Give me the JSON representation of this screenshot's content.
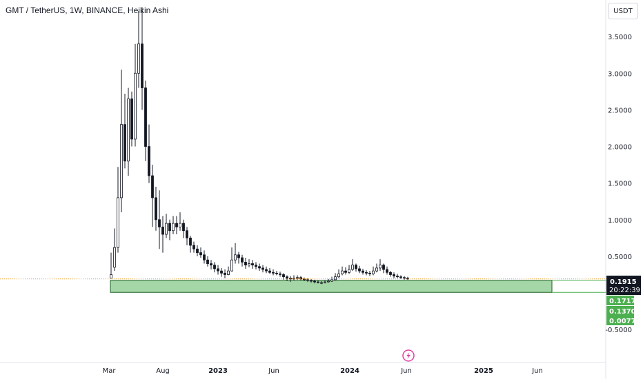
{
  "header": {
    "title": "GMT / TetherUS, 1W, BINANCE, Heikin Ashi",
    "currency_button": "USDT"
  },
  "colors": {
    "candle_body": "#131722",
    "zone_fill": "#a5d6a7",
    "zone_border": "#1b5e20",
    "price_label_bg": "#131722",
    "level_label_bg": "#4caf50",
    "price_line": "#f0a030"
  },
  "chart_data": {
    "type": "candlestick",
    "title": "GMT / TetherUS, 1W, BINANCE, Heikin Ashi",
    "x_ticks": [
      "Mar",
      "Aug",
      "2023",
      "Jun",
      "2024",
      "Jun",
      "2025",
      "Jun"
    ],
    "y_ticks": [
      "3.5000",
      "3.0000",
      "2.5000",
      "2.0000",
      "1.5000",
      "1.0000",
      "0.5000",
      "-0.5000"
    ],
    "y_tick_values": [
      3.5,
      3.0,
      2.5,
      2.0,
      1.5,
      1.0,
      0.5,
      -0.5
    ],
    "ylim": [
      -0.95,
      4.0
    ],
    "current_price": {
      "value": 0.1915,
      "label": "0.1915",
      "countdown": "20:22:39"
    },
    "level_labels": [
      {
        "value": 0.1717,
        "label": "0.1717"
      },
      {
        "value": 0.137,
        "label": "0.1370"
      },
      {
        "value": 0.0077,
        "label": "0.0077"
      }
    ],
    "zone": {
      "top": 0.1717,
      "bottom": 0.0077
    },
    "candles": [
      [
        0.2,
        0.25,
        0.2,
        0.55
      ],
      [
        0.35,
        0.62,
        0.3,
        0.88
      ],
      [
        0.62,
        1.3,
        0.55,
        1.72
      ],
      [
        1.3,
        2.3,
        1.1,
        3.05
      ],
      [
        2.3,
        1.8,
        1.7,
        2.72
      ],
      [
        1.8,
        2.65,
        1.6,
        2.8
      ],
      [
        2.65,
        2.1,
        2.0,
        2.75
      ],
      [
        2.1,
        3.0,
        2.0,
        3.4
      ],
      [
        3.0,
        3.4,
        2.8,
        3.85
      ],
      [
        3.4,
        2.8,
        2.5,
        3.9
      ],
      [
        2.8,
        2.0,
        1.8,
        2.9
      ],
      [
        2.0,
        1.6,
        1.5,
        2.3
      ],
      [
        1.6,
        1.3,
        0.9,
        1.75
      ],
      [
        1.3,
        1.0,
        0.85,
        1.45
      ],
      [
        1.0,
        0.9,
        0.6,
        1.4
      ],
      [
        0.9,
        0.8,
        0.55,
        1.05
      ],
      [
        0.8,
        0.95,
        0.75,
        1.08
      ],
      [
        0.95,
        0.85,
        0.72,
        1.0
      ],
      [
        0.85,
        0.95,
        0.8,
        1.05
      ],
      [
        0.95,
        0.9,
        0.8,
        1.05
      ],
      [
        0.9,
        0.95,
        0.85,
        1.1
      ],
      [
        0.95,
        0.85,
        0.75,
        1.0
      ],
      [
        0.85,
        0.75,
        0.65,
        0.9
      ],
      [
        0.75,
        0.65,
        0.55,
        0.78
      ],
      [
        0.65,
        0.6,
        0.55,
        0.7
      ],
      [
        0.6,
        0.55,
        0.5,
        0.65
      ],
      [
        0.55,
        0.52,
        0.48,
        0.62
      ],
      [
        0.52,
        0.45,
        0.4,
        0.58
      ],
      [
        0.45,
        0.4,
        0.36,
        0.5
      ],
      [
        0.4,
        0.38,
        0.32,
        0.45
      ],
      [
        0.38,
        0.33,
        0.28,
        0.42
      ],
      [
        0.33,
        0.3,
        0.25,
        0.38
      ],
      [
        0.3,
        0.27,
        0.22,
        0.34
      ],
      [
        0.27,
        0.25,
        0.2,
        0.32
      ],
      [
        0.25,
        0.3,
        0.24,
        0.36
      ],
      [
        0.3,
        0.45,
        0.29,
        0.62
      ],
      [
        0.45,
        0.52,
        0.4,
        0.68
      ],
      [
        0.52,
        0.48,
        0.4,
        0.56
      ],
      [
        0.48,
        0.42,
        0.36,
        0.52
      ],
      [
        0.42,
        0.38,
        0.33,
        0.48
      ],
      [
        0.38,
        0.4,
        0.35,
        0.46
      ],
      [
        0.4,
        0.38,
        0.33,
        0.45
      ],
      [
        0.38,
        0.36,
        0.32,
        0.42
      ],
      [
        0.36,
        0.34,
        0.3,
        0.4
      ],
      [
        0.34,
        0.32,
        0.28,
        0.38
      ],
      [
        0.32,
        0.3,
        0.27,
        0.36
      ],
      [
        0.3,
        0.28,
        0.26,
        0.34
      ],
      [
        0.28,
        0.27,
        0.24,
        0.32
      ],
      [
        0.27,
        0.26,
        0.24,
        0.3
      ],
      [
        0.26,
        0.25,
        0.22,
        0.29
      ],
      [
        0.25,
        0.22,
        0.18,
        0.27
      ],
      [
        0.22,
        0.2,
        0.16,
        0.24
      ],
      [
        0.2,
        0.19,
        0.15,
        0.23
      ],
      [
        0.19,
        0.2,
        0.17,
        0.24
      ],
      [
        0.2,
        0.21,
        0.18,
        0.24
      ],
      [
        0.21,
        0.19,
        0.17,
        0.23
      ],
      [
        0.19,
        0.18,
        0.16,
        0.21
      ],
      [
        0.18,
        0.17,
        0.15,
        0.2
      ],
      [
        0.17,
        0.16,
        0.14,
        0.19
      ],
      [
        0.16,
        0.15,
        0.13,
        0.18
      ],
      [
        0.15,
        0.14,
        0.13,
        0.17
      ],
      [
        0.14,
        0.14,
        0.12,
        0.16
      ],
      [
        0.14,
        0.15,
        0.13,
        0.17
      ],
      [
        0.15,
        0.16,
        0.14,
        0.19
      ],
      [
        0.16,
        0.18,
        0.15,
        0.22
      ],
      [
        0.18,
        0.22,
        0.17,
        0.27
      ],
      [
        0.22,
        0.26,
        0.2,
        0.32
      ],
      [
        0.26,
        0.3,
        0.24,
        0.36
      ],
      [
        0.3,
        0.28,
        0.25,
        0.35
      ],
      [
        0.28,
        0.32,
        0.26,
        0.38
      ],
      [
        0.32,
        0.38,
        0.3,
        0.46
      ],
      [
        0.38,
        0.33,
        0.29,
        0.4
      ],
      [
        0.33,
        0.3,
        0.27,
        0.37
      ],
      [
        0.3,
        0.28,
        0.25,
        0.33
      ],
      [
        0.28,
        0.27,
        0.24,
        0.31
      ],
      [
        0.27,
        0.26,
        0.23,
        0.3
      ],
      [
        0.26,
        0.3,
        0.24,
        0.36
      ],
      [
        0.3,
        0.34,
        0.28,
        0.4
      ],
      [
        0.34,
        0.38,
        0.3,
        0.46
      ],
      [
        0.38,
        0.32,
        0.27,
        0.4
      ],
      [
        0.32,
        0.28,
        0.25,
        0.36
      ],
      [
        0.28,
        0.25,
        0.22,
        0.3
      ],
      [
        0.25,
        0.23,
        0.2,
        0.28
      ],
      [
        0.23,
        0.22,
        0.2,
        0.26
      ],
      [
        0.22,
        0.21,
        0.19,
        0.24
      ],
      [
        0.21,
        0.2,
        0.18,
        0.23
      ],
      [
        0.2,
        0.19,
        0.18,
        0.22
      ]
    ]
  }
}
